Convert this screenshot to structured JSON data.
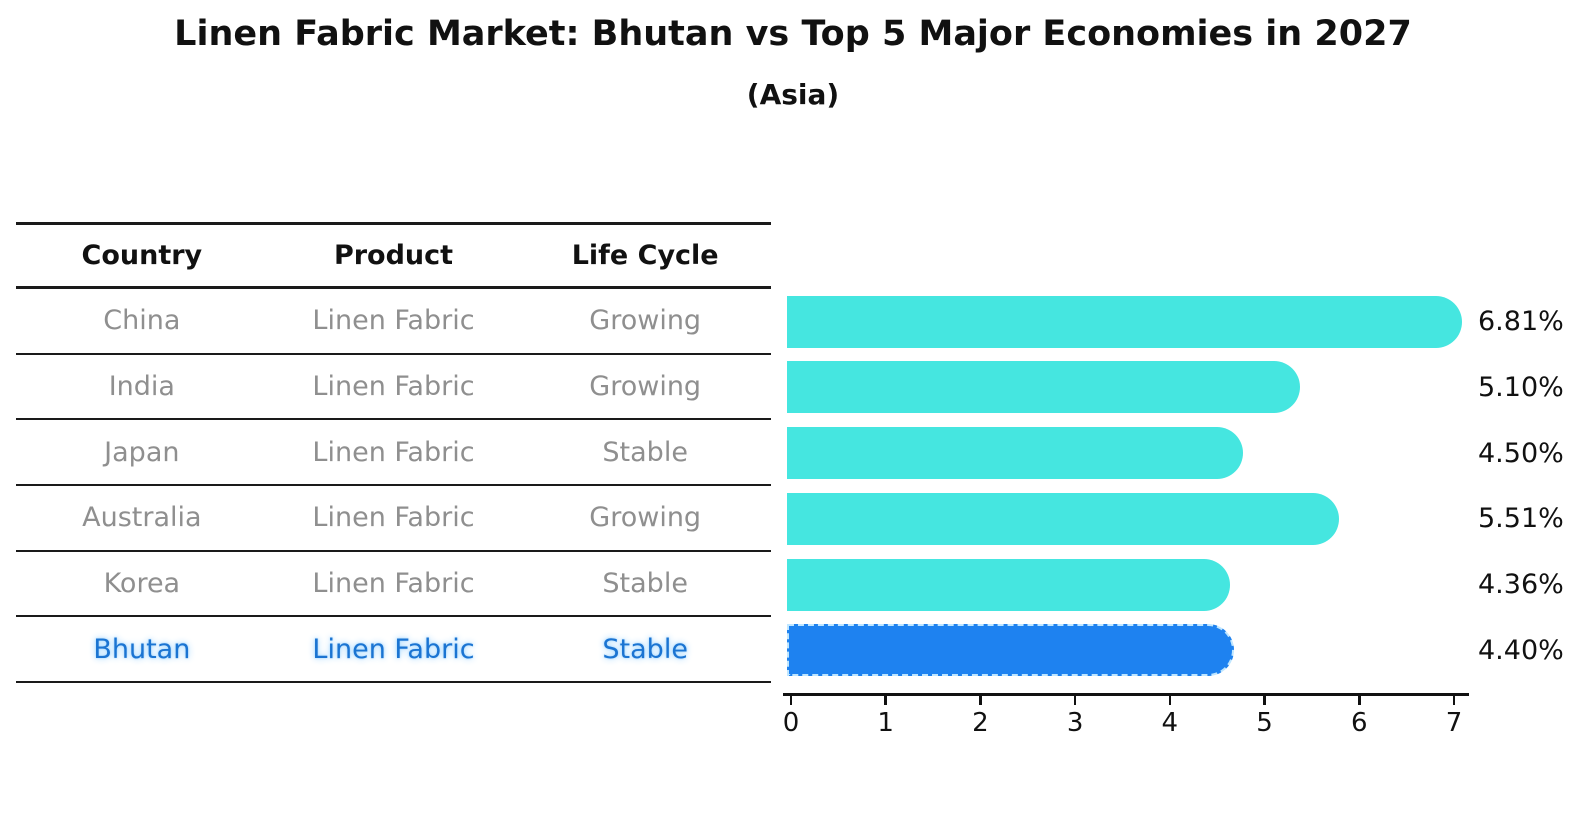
{
  "title": "Linen Fabric Market: Bhutan vs Top 5 Major Economies in 2027",
  "subtitle": "(Asia)",
  "table": {
    "headers": {
      "country": "Country",
      "product": "Product",
      "life_cycle": "Life Cycle"
    },
    "rows": [
      {
        "country": "China",
        "product": "Linen Fabric",
        "life_cycle": "Growing",
        "highlight": false
      },
      {
        "country": "India",
        "product": "Linen Fabric",
        "life_cycle": "Growing",
        "highlight": false
      },
      {
        "country": "Japan",
        "product": "Linen Fabric",
        "life_cycle": "Stable",
        "highlight": false
      },
      {
        "country": "Australia",
        "product": "Linen Fabric",
        "life_cycle": "Growing",
        "highlight": false
      },
      {
        "country": "Korea",
        "product": "Linen Fabric",
        "life_cycle": "Stable",
        "highlight": false
      },
      {
        "country": "Bhutan",
        "product": "Linen Fabric",
        "life_cycle": "Stable",
        "highlight": true
      }
    ]
  },
  "chart_data": {
    "type": "bar",
    "orientation": "horizontal",
    "title": "Linen Fabric Market: Bhutan vs Top 5 Major Economies in 2027 (Asia)",
    "categories": [
      "China",
      "India",
      "Japan",
      "Australia",
      "Korea",
      "Bhutan"
    ],
    "values": [
      6.81,
      5.1,
      4.5,
      5.51,
      4.36,
      4.4
    ],
    "value_labels": [
      "6.81%",
      "5.10%",
      "4.50%",
      "5.51%",
      "4.36%",
      "4.40%"
    ],
    "xlim": [
      0,
      7
    ],
    "xticks": [
      0,
      1,
      2,
      3,
      4,
      5,
      6,
      7
    ],
    "grid": false,
    "legend": false,
    "highlight_index": 5,
    "bar_color": "#45E6E0",
    "highlight_bar_color": "#1E82F0",
    "highlight_text_color": "#1B74D2"
  }
}
